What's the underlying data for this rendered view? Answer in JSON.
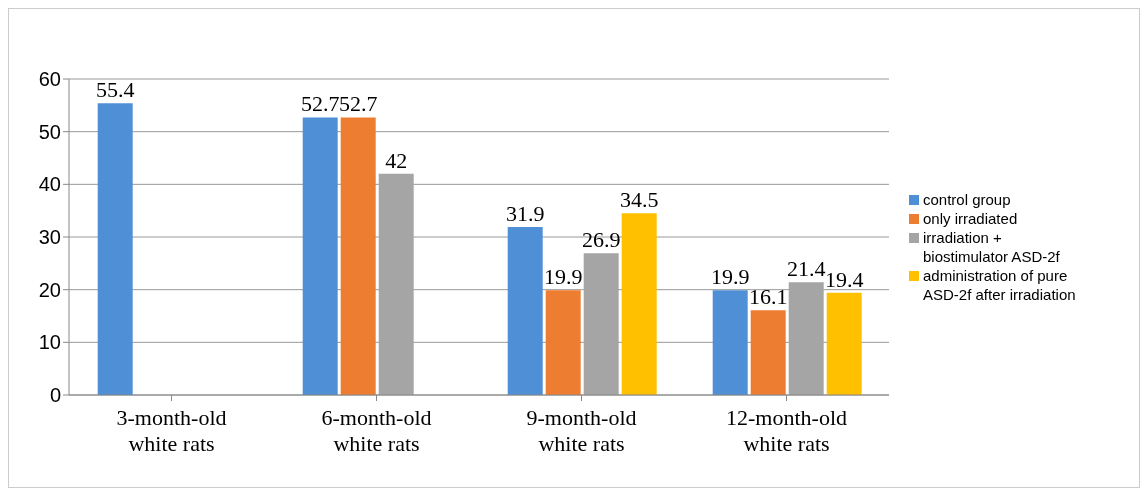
{
  "chart_data": {
    "type": "bar",
    "categories": [
      "3-month-old white rats",
      "6-month-old white rats",
      "9-month-old white rats",
      "12-month-old white rats"
    ],
    "series": [
      {
        "name": "control group",
        "color": "#4f8fd6",
        "values": [
          55.4,
          52.7,
          31.9,
          19.9
        ]
      },
      {
        "name": "only irradiated",
        "color": "#ed7d31",
        "values": [
          null,
          52.7,
          19.9,
          16.1
        ]
      },
      {
        "name": "irradiation + biostimulator ASD-2f",
        "color": "#a5a5a5",
        "values": [
          null,
          42,
          26.9,
          21.4
        ]
      },
      {
        "name": "administration of pure ASD-2f after irradiation",
        "color": "#ffc000",
        "values": [
          null,
          null,
          34.5,
          19.4
        ]
      }
    ],
    "ylim": [
      0,
      60
    ],
    "yticks": [
      0,
      10,
      20,
      30,
      40,
      50,
      60
    ],
    "grid": "y",
    "legend": "right",
    "data_labels": true
  }
}
